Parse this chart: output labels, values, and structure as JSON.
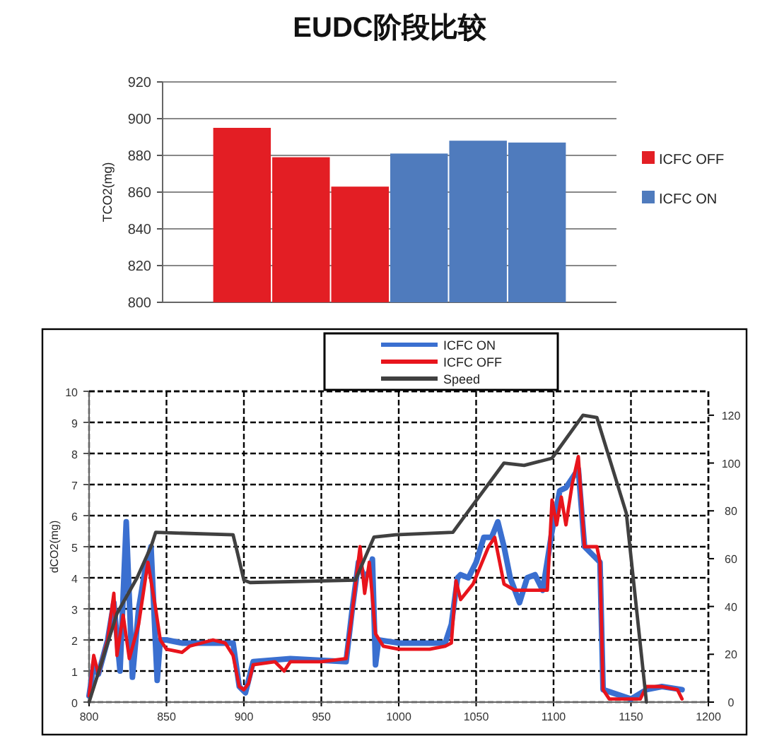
{
  "chart_data": [
    {
      "type": "bar",
      "title": "EUDC阶段比较",
      "ylabel": "TCO2(mg)",
      "categories": [
        null,
        null,
        null,
        null,
        null,
        null
      ],
      "series": [
        {
          "name": "ICFC OFF",
          "color": "#e31e24",
          "values": [
            895,
            879,
            863,
            null,
            null,
            null
          ]
        },
        {
          "name": "ICFC ON",
          "color": "#4f7bbd",
          "values": [
            null,
            null,
            null,
            881,
            888,
            887
          ]
        }
      ],
      "ylim": [
        800,
        920
      ],
      "yticks": [
        800,
        820,
        840,
        860,
        880,
        900,
        920
      ],
      "grid": "y",
      "legend": "right",
      "stacked": true
    },
    {
      "type": "line",
      "ylabel": "dCO2(mg)",
      "xlim": [
        800,
        1200
      ],
      "xticks": [
        800,
        850,
        900,
        950,
        1000,
        1050,
        1100,
        1150,
        1200
      ],
      "ylim": [
        0,
        10
      ],
      "yticks": [
        0,
        1,
        2,
        3,
        4,
        5,
        6,
        7,
        8,
        9,
        10
      ],
      "y2lim": [
        0,
        130
      ],
      "y2ticks": [
        0,
        20,
        40,
        60,
        80,
        100,
        120
      ],
      "grid": true,
      "legend": "top",
      "series": [
        {
          "name": "ICFC ON",
          "color": "#3a6fd0",
          "x": [
            800,
            803,
            806,
            812,
            816,
            820,
            824,
            828,
            832,
            836,
            840,
            844,
            846,
            850,
            860,
            880,
            893,
            897,
            901,
            906,
            930,
            966,
            970,
            974,
            978,
            981,
            983,
            985,
            987,
            1000,
            1030,
            1034,
            1038,
            1040,
            1045,
            1050,
            1055,
            1060,
            1064,
            1068,
            1072,
            1078,
            1083,
            1088,
            1093,
            1099,
            1104,
            1108,
            1112,
            1116,
            1120,
            1130,
            1132,
            1150,
            1160,
            1170,
            1183
          ],
          "values": [
            0.2,
            1.2,
            0.9,
            2.0,
            3.2,
            1.0,
            5.8,
            0.8,
            3.0,
            4.2,
            5.0,
            0.7,
            2.0,
            2.0,
            1.9,
            1.9,
            1.9,
            0.5,
            0.3,
            1.3,
            1.4,
            1.3,
            3.0,
            4.5,
            4.0,
            4.2,
            4.6,
            1.2,
            2.0,
            1.9,
            1.9,
            2.5,
            4.0,
            4.1,
            4.0,
            4.5,
            5.3,
            5.3,
            5.8,
            5.0,
            4.0,
            3.2,
            4.0,
            4.1,
            3.6,
            5.5,
            6.8,
            6.9,
            7.2,
            7.5,
            5.0,
            4.5,
            0.4,
            0.1,
            0.4,
            0.5,
            0.4
          ]
        },
        {
          "name": "ICFC OFF",
          "color": "#e8141c",
          "x": [
            800,
            803,
            806,
            812,
            816,
            818,
            822,
            826,
            832,
            838,
            843,
            846,
            850,
            860,
            865,
            880,
            888,
            893,
            897,
            900,
            903,
            906,
            920,
            926,
            930,
            950,
            966,
            969,
            975,
            978,
            981,
            985,
            990,
            1000,
            1020,
            1030,
            1034,
            1037,
            1040,
            1048,
            1058,
            1062,
            1068,
            1075,
            1090,
            1096,
            1099,
            1102,
            1105,
            1108,
            1112,
            1116,
            1120,
            1128,
            1130,
            1132,
            1136,
            1156,
            1160,
            1170,
            1180,
            1183
          ],
          "values": [
            0.2,
            1.5,
            0.9,
            2.0,
            3.5,
            1.5,
            2.8,
            1.4,
            2.5,
            4.5,
            3.0,
            2.0,
            1.7,
            1.6,
            1.8,
            2.0,
            1.9,
            1.5,
            0.5,
            0.4,
            0.6,
            1.2,
            1.3,
            1.0,
            1.3,
            1.3,
            1.4,
            2.5,
            5.0,
            3.5,
            4.5,
            2.2,
            1.8,
            1.7,
            1.7,
            1.8,
            1.9,
            3.9,
            3.3,
            3.8,
            5.0,
            5.3,
            3.8,
            3.6,
            3.6,
            3.6,
            6.5,
            5.7,
            6.6,
            5.7,
            7.0,
            7.9,
            5.0,
            5.0,
            4.5,
            0.4,
            0.1,
            0.1,
            0.5,
            0.5,
            0.4,
            0.1
          ]
        },
        {
          "name": "Speed",
          "color": "#404040",
          "axis": "y2",
          "x": [
            800,
            818,
            831,
            840,
            843,
            893,
            896,
            900,
            904,
            972,
            978,
            984,
            998,
            1035,
            1044,
            1068,
            1081,
            1099,
            1119,
            1128,
            1147,
            1160
          ],
          "values": [
            0,
            37,
            52,
            65,
            71,
            70,
            62,
            51,
            50,
            51,
            60,
            69,
            70,
            71,
            79,
            100,
            99,
            102,
            120,
            119,
            79,
            0
          ]
        }
      ]
    }
  ]
}
